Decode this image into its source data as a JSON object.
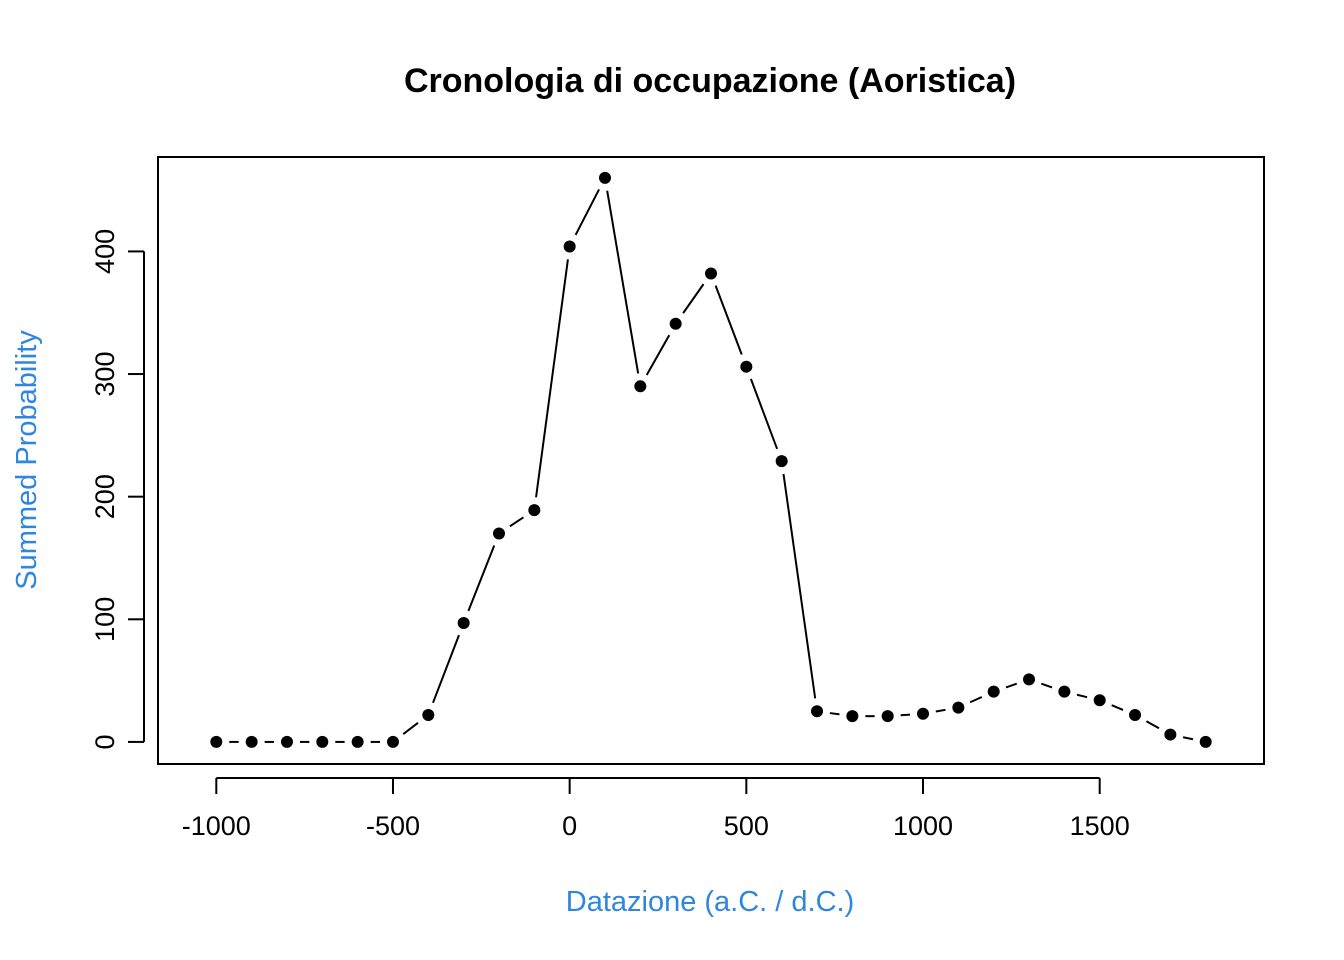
{
  "chart_data": {
    "type": "line",
    "title": "Cronologia di occupazione (Aoristica)",
    "xlabel": "Datazione (a.C. / d.C.)",
    "ylabel": "Summed Probability",
    "label_color": "#2e86de",
    "line_color": "#000000",
    "point_color": "#000000",
    "xlim": [
      -1165,
      1965
    ],
    "ylim": [
      -18,
      477
    ],
    "x_ticks": [
      -1000,
      -500,
      0,
      500,
      1000,
      1500
    ],
    "x_tick_labels": [
      "-1000",
      "-500",
      "0",
      "500",
      "1000",
      "1500"
    ],
    "y_ticks": [
      0,
      100,
      200,
      300,
      400
    ],
    "y_tick_labels": [
      "0",
      "100",
      "200",
      "300",
      "400"
    ],
    "grid": false,
    "series": [
      {
        "x": [
          -1000,
          -900,
          -800,
          -700,
          -600,
          -500,
          -400,
          -300,
          -200,
          -100,
          0,
          100,
          200,
          300,
          400,
          500,
          600,
          700,
          800,
          900,
          1000,
          1100,
          1200,
          1300,
          1400,
          1500,
          1600,
          1700,
          1800
        ],
        "y": [
          0,
          0,
          0,
          0,
          0,
          0,
          22,
          97,
          170,
          189,
          404,
          460,
          290,
          341,
          382,
          306,
          229,
          25,
          21,
          21,
          23,
          28,
          41,
          51,
          41,
          34,
          22,
          6,
          0
        ]
      }
    ]
  }
}
